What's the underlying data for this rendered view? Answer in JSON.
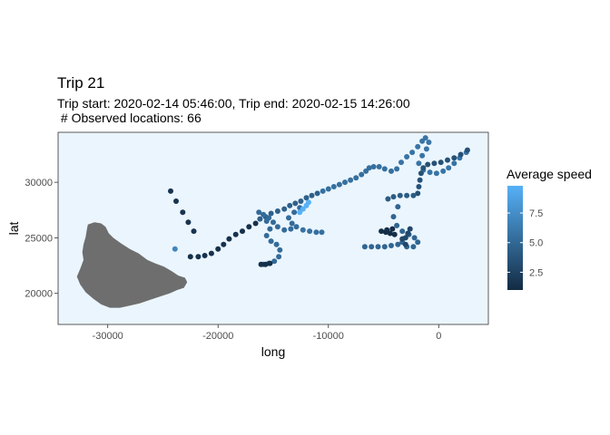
{
  "chart_data": {
    "type": "scatter",
    "title": "Trip 21",
    "subtitle_lines": [
      "Trip start: 2020-02-14 05:46:00, Trip end: 2020-02-15 14:26:00",
      " # Observed locations: 66"
    ],
    "xlabel": "long",
    "ylabel": "lat",
    "xlim": [
      -34500,
      4500
    ],
    "ylim": [
      17200,
      34500
    ],
    "x_ticks": [
      {
        "v": -30000,
        "label": "-30000"
      },
      {
        "v": -20000,
        "label": "-20000"
      },
      {
        "v": -10000,
        "label": "-10000"
      },
      {
        "v": 0,
        "label": "0"
      }
    ],
    "y_ticks": [
      {
        "v": 20000,
        "label": "20000"
      },
      {
        "v": 25000,
        "label": "25000"
      },
      {
        "v": 30000,
        "label": "30000"
      }
    ],
    "panel_background": "#ebf5fe",
    "land_color": "#6e6e6e",
    "legend": {
      "title": "Average speed",
      "position": "right",
      "min": 1.0,
      "max": 9.8,
      "low_color": "#132b43",
      "high_color": "#56b1f7",
      "ticks": [
        {
          "v": 2.5,
          "label": "2.5"
        },
        {
          "v": 5.0,
          "label": "5.0"
        },
        {
          "v": 7.5,
          "label": "7.5"
        }
      ]
    },
    "island_outline": [
      [
        -31800,
        26200
      ],
      [
        -31200,
        26400
      ],
      [
        -30600,
        26300
      ],
      [
        -30200,
        26000
      ],
      [
        -29900,
        25400
      ],
      [
        -29500,
        25000
      ],
      [
        -28800,
        24500
      ],
      [
        -28000,
        24000
      ],
      [
        -27200,
        23600
      ],
      [
        -26400,
        23000
      ],
      [
        -25700,
        22700
      ],
      [
        -24900,
        22400
      ],
      [
        -24200,
        22000
      ],
      [
        -23600,
        21600
      ],
      [
        -23000,
        21400
      ],
      [
        -22800,
        21000
      ],
      [
        -23100,
        20500
      ],
      [
        -23700,
        20300
      ],
      [
        -24400,
        20000
      ],
      [
        -25300,
        19700
      ],
      [
        -26200,
        19400
      ],
      [
        -27100,
        19100
      ],
      [
        -28000,
        18900
      ],
      [
        -28900,
        18700
      ],
      [
        -29800,
        18700
      ],
      [
        -30600,
        19000
      ],
      [
        -31300,
        19500
      ],
      [
        -32000,
        20100
      ],
      [
        -32500,
        20800
      ],
      [
        -32800,
        21500
      ],
      [
        -32500,
        22200
      ],
      [
        -32200,
        23000
      ],
      [
        -32300,
        23700
      ],
      [
        -32200,
        24400
      ],
      [
        -32000,
        25100
      ],
      [
        -31900,
        25700
      ]
    ],
    "tracks": [
      {
        "s": 1.6,
        "pts": [
          [
            -24300,
            29200
          ],
          [
            -23800,
            28300
          ],
          [
            -23200,
            27300
          ],
          [
            -22700,
            26400
          ],
          [
            -22200,
            25600
          ]
        ]
      },
      {
        "s": 7.0,
        "pts": [
          [
            -23900,
            24000
          ]
        ]
      },
      {
        "s": 1.4,
        "pts": [
          [
            -22500,
            23300
          ],
          [
            -21800,
            23300
          ],
          [
            -21200,
            23400
          ],
          [
            -20600,
            23600
          ],
          [
            -20000,
            24000
          ],
          [
            -19500,
            24400
          ],
          [
            -19000,
            24900
          ],
          [
            -18400,
            25300
          ],
          [
            -17800,
            25600
          ],
          [
            -17200,
            26000
          ],
          [
            -16600,
            26300
          ]
        ]
      },
      {
        "s": 4.5,
        "pts": [
          [
            -16200,
            26700
          ],
          [
            -15700,
            26900
          ],
          [
            -15200,
            27200
          ],
          [
            -14600,
            27400
          ],
          [
            -14000,
            27600
          ],
          [
            -13500,
            27900
          ],
          [
            -13000,
            28100
          ],
          [
            -12500,
            28300
          ],
          [
            -12000,
            28600
          ],
          [
            -11500,
            28800
          ],
          [
            -11000,
            29000
          ]
        ]
      },
      {
        "s": 5.5,
        "pts": [
          [
            -10500,
            29200
          ],
          [
            -10000,
            29400
          ],
          [
            -9500,
            29600
          ],
          [
            -9000,
            29800
          ],
          [
            -8500,
            30000
          ],
          [
            -8000,
            30200
          ],
          [
            -7500,
            30400
          ],
          [
            -7000,
            30700
          ],
          [
            -6600,
            31000
          ],
          [
            -6300,
            31300
          ],
          [
            -5900,
            31400
          ],
          [
            -5400,
            31400
          ],
          [
            -4900,
            31200
          ],
          [
            -4300,
            31000
          ],
          [
            -3800,
            31200
          ]
        ]
      },
      {
        "s": 5.8,
        "pts": [
          [
            -3400,
            31800
          ],
          [
            -2900,
            32300
          ],
          [
            -2400,
            32700
          ],
          [
            -1900,
            33200
          ],
          [
            -1500,
            33700
          ],
          [
            -1200,
            34000
          ],
          [
            -900,
            33600
          ],
          [
            -1100,
            33000
          ],
          [
            -1500,
            32400
          ],
          [
            -1800,
            31700
          ],
          [
            -1400,
            31100
          ],
          [
            -800,
            30900
          ],
          [
            -200,
            30800
          ],
          [
            400,
            31000
          ],
          [
            900,
            31300
          ],
          [
            1400,
            31700
          ],
          [
            1900,
            32200
          ],
          [
            2500,
            32700
          ]
        ]
      },
      {
        "s": 3.5,
        "pts": [
          [
            2600,
            32900
          ],
          [
            2000,
            32500
          ],
          [
            1400,
            32200
          ],
          [
            800,
            32000
          ],
          [
            200,
            31800
          ],
          [
            -400,
            31700
          ],
          [
            -1000,
            31600
          ],
          [
            -1400,
            31300
          ],
          [
            -1600,
            30800
          ],
          [
            -1700,
            30200
          ],
          [
            -1800,
            29600
          ],
          [
            -1900,
            29000
          ]
        ]
      },
      {
        "s": 4.2,
        "pts": [
          [
            -2300,
            28800
          ],
          [
            -2900,
            28800
          ],
          [
            -3500,
            28800
          ],
          [
            -4100,
            28700
          ],
          [
            -4600,
            28500
          ]
        ]
      },
      {
        "s": 4.8,
        "pts": [
          [
            -3700,
            27800
          ],
          [
            -4100,
            26900
          ],
          [
            -3800,
            26100
          ],
          [
            -3300,
            25600
          ],
          [
            -2700,
            25300
          ],
          [
            -2200,
            25000
          ],
          [
            -1900,
            24600
          ],
          [
            -2300,
            24200
          ],
          [
            -2900,
            24200
          ],
          [
            -3300,
            24600
          ],
          [
            -3700,
            24400
          ],
          [
            -4300,
            24300
          ],
          [
            -4900,
            24200
          ],
          [
            -5500,
            24200
          ],
          [
            -6100,
            24200
          ],
          [
            -6700,
            24200
          ]
        ]
      },
      {
        "s": 1.2,
        "pts": [
          [
            -5200,
            25600
          ],
          [
            -4800,
            25500
          ],
          [
            -4400,
            25400
          ],
          [
            -4000,
            25300
          ],
          [
            -4200,
            25800
          ],
          [
            -4700,
            25700
          ]
        ]
      },
      {
        "s": 2.8,
        "pts": [
          [
            -2600,
            25800
          ],
          [
            -2800,
            25400
          ],
          [
            -3000,
            25000
          ],
          [
            -3300,
            24900
          ],
          [
            -3000,
            24400
          ]
        ]
      },
      {
        "s": 5.2,
        "pts": [
          [
            -12600,
            27700
          ],
          [
            -13100,
            27300
          ],
          [
            -13600,
            26800
          ],
          [
            -13300,
            26300
          ],
          [
            -12900,
            26000
          ],
          [
            -13400,
            25800
          ],
          [
            -14000,
            25700
          ],
          [
            -14600,
            26000
          ],
          [
            -15000,
            26400
          ],
          [
            -15400,
            26800
          ],
          [
            -15900,
            27100
          ],
          [
            -16300,
            27300
          ],
          [
            -15600,
            26500
          ],
          [
            -15300,
            25800
          ],
          [
            -15600,
            25200
          ],
          [
            -15200,
            24700
          ],
          [
            -14700,
            24400
          ],
          [
            -14400,
            23900
          ],
          [
            -14500,
            23300
          ],
          [
            -14900,
            22900
          ],
          [
            -15400,
            22700
          ],
          [
            -15900,
            22600
          ]
        ]
      },
      {
        "s": 1.3,
        "pts": [
          [
            -16100,
            22600
          ],
          [
            -15700,
            22600
          ],
          [
            -15300,
            22700
          ]
        ]
      },
      {
        "s": 5.6,
        "pts": [
          [
            -12300,
            25700
          ],
          [
            -11700,
            25600
          ],
          [
            -11100,
            25500
          ],
          [
            -10600,
            25500
          ]
        ]
      },
      {
        "s": 9.8,
        "pts": [
          [
            -12600,
            27300
          ],
          [
            -12300,
            27600
          ],
          [
            -12000,
            27900
          ],
          [
            -11800,
            28200
          ]
        ]
      }
    ]
  }
}
